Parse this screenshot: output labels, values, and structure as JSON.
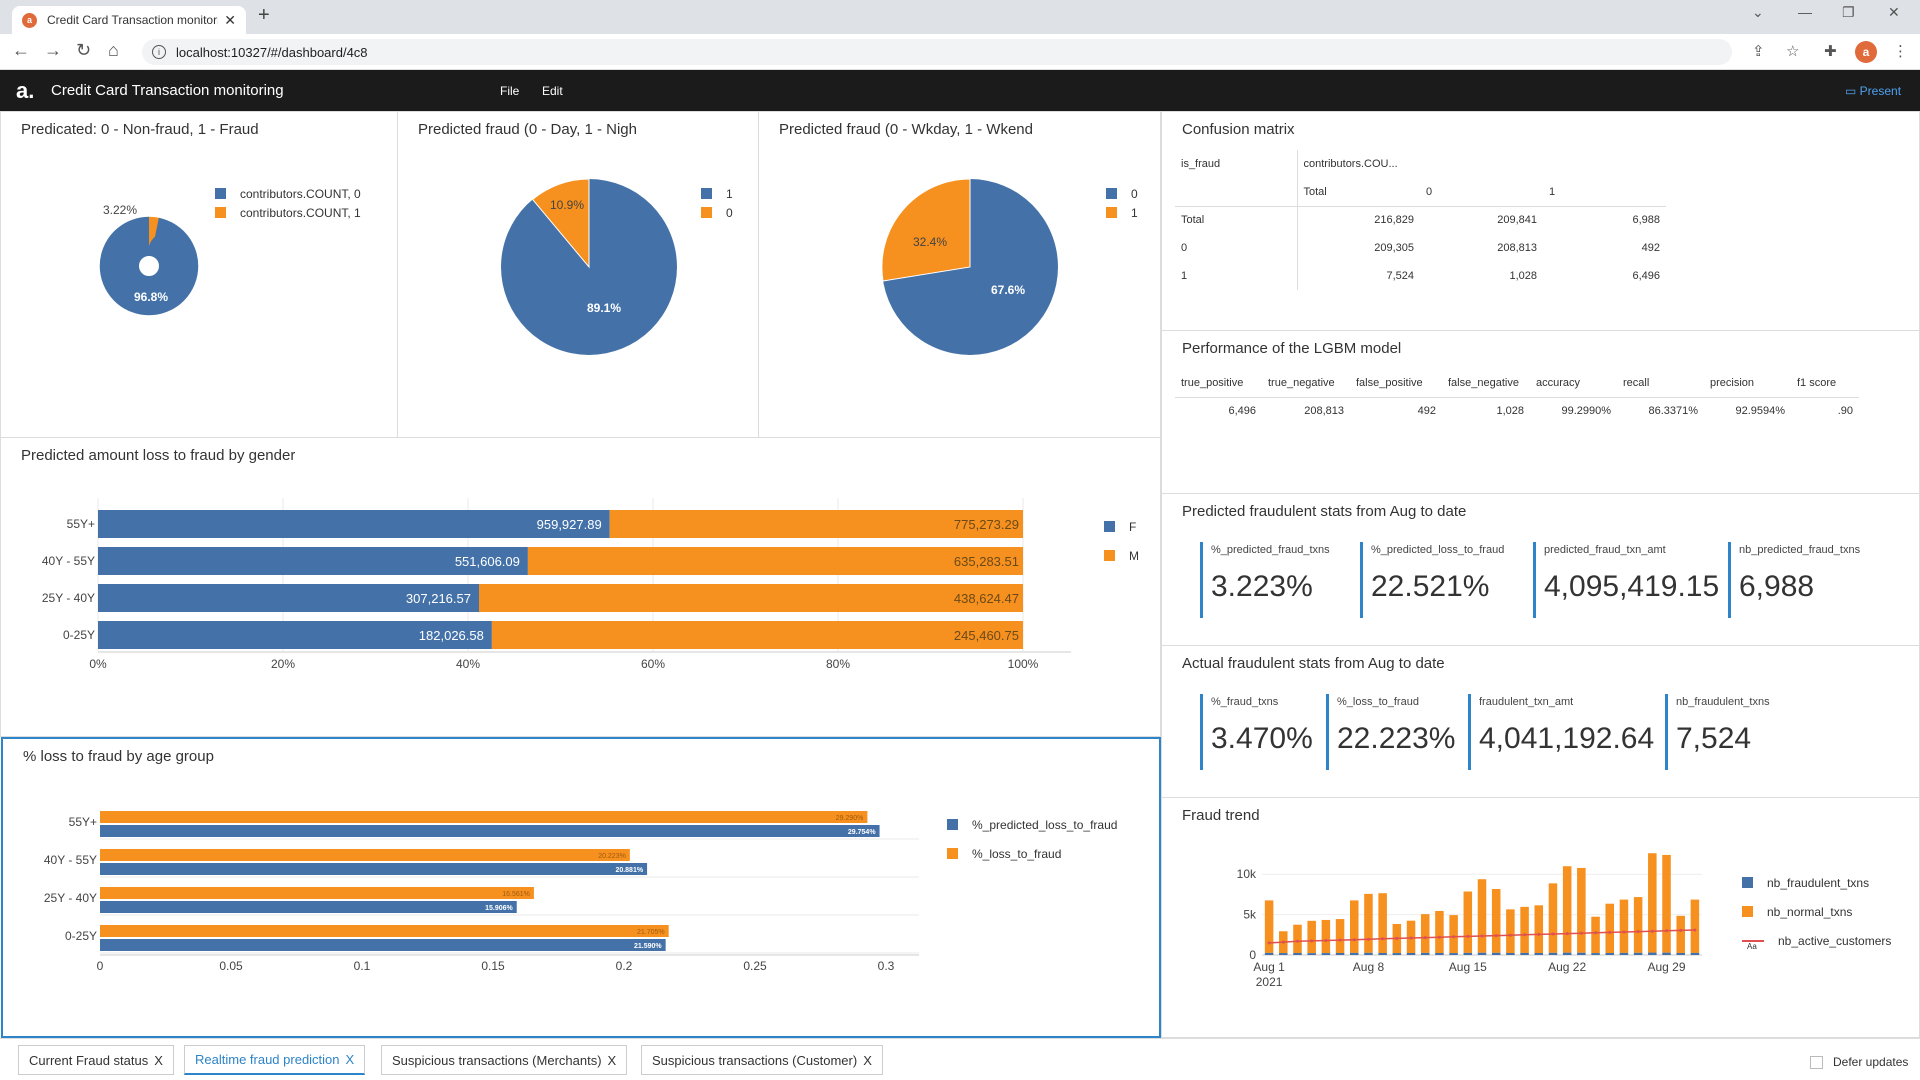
{
  "browser": {
    "tab_title": "Credit Card Transaction monitori",
    "url": "localhost:10327/#/dashboard/4c8"
  },
  "app": {
    "title": "Credit Card Transaction monitoring",
    "menu": [
      "File",
      "Edit"
    ],
    "present_label": "Present"
  },
  "panels": {
    "pie1": {
      "title": "Predicated: 0 - Non-fraud, 1 - Fraud",
      "legend": [
        "contributors.COUNT, 0",
        "contributors.COUNT, 1"
      ],
      "labels": [
        "96.8%",
        "3.22%"
      ]
    },
    "pie2": {
      "title": "Predicted fraud (0 - Day, 1 - Nigh",
      "legend": [
        "1",
        "0"
      ],
      "labels": [
        "89.1%",
        "10.9%"
      ]
    },
    "pie3": {
      "title": "Predicted fraud (0 - Wkday, 1 - Wkend",
      "legend": [
        "0",
        "1"
      ],
      "labels": [
        "67.6%",
        "32.4%"
      ]
    },
    "confusion": {
      "title": "Confusion matrix",
      "row_header": "is_fraud",
      "col_header": "contributors.COU...",
      "columns": [
        "Total",
        "0",
        "1"
      ],
      "rows": [
        {
          "label": "Total",
          "values": [
            "216,829",
            "209,841",
            "6,988"
          ]
        },
        {
          "label": "0",
          "values": [
            "209,305",
            "208,813",
            "492"
          ]
        },
        {
          "label": "1",
          "values": [
            "7,524",
            "1,028",
            "6,496"
          ]
        }
      ]
    },
    "performance": {
      "title": "Performance of the LGBM model",
      "headers": [
        "true_positive",
        "true_negative",
        "false_positive",
        "false_negative",
        "accuracy",
        "recall",
        "precision",
        "f1 score"
      ],
      "values": [
        "6,496",
        "208,813",
        "492",
        "1,028",
        "99.2990%",
        "86.3371%",
        "92.9594%",
        ".90"
      ]
    },
    "predicted_stats": {
      "title": "Predicted fraudulent stats from Aug to date",
      "kpis": [
        {
          "label": "%_predicted_fraud_txns",
          "value": "3.223%"
        },
        {
          "label": "%_predicted_loss_to_fraud",
          "value": "22.521%"
        },
        {
          "label": "predicted_fraud_txn_amt",
          "value": "4,095,419.15"
        },
        {
          "label": "nb_predicted_fraud_txns",
          "value": "6,988"
        }
      ]
    },
    "actual_stats": {
      "title": "Actual fraudulent stats from Aug to date",
      "kpis": [
        {
          "label": "%_fraud_txns",
          "value": "3.470%"
        },
        {
          "label": "%_loss_to_fraud",
          "value": "22.223%"
        },
        {
          "label": "fraudulent_txn_amt",
          "value": "4,041,192.64"
        },
        {
          "label": "nb_fraudulent_txns",
          "value": "7,524"
        }
      ]
    },
    "gender": {
      "title": "Predicted amount loss to fraud by gender",
      "legend": [
        "F",
        "M"
      ]
    },
    "age": {
      "title": "% loss to fraud by age group",
      "legend": [
        "%_predicted_loss_to_fraud",
        "%_loss_to_fraud"
      ]
    },
    "trend": {
      "title": "Fraud trend",
      "legend": [
        "nb_fraudulent_txns",
        "nb_normal_txns",
        "nb_active_customers"
      ],
      "legend_sub": "Aa"
    }
  },
  "bottom_tabs": [
    {
      "label": "Current Fraud status",
      "active": false
    },
    {
      "label": "Realtime fraud prediction",
      "active": true
    },
    {
      "label": "Suspicious transactions (Merchants)",
      "active": false
    },
    {
      "label": "Suspicious transactions (Customer)",
      "active": false
    }
  ],
  "defer_updates_label": "Defer updates",
  "colors": {
    "blue": "#4472a8",
    "orange": "#f6901e",
    "accent": "#2d84c8"
  },
  "chart_data": [
    {
      "type": "pie",
      "title": "Predicated: 0 - Non-fraud, 1 - Fraud",
      "categories": [
        "contributors.COUNT, 0",
        "contributors.COUNT, 1"
      ],
      "values": [
        96.8,
        3.22
      ],
      "donut": true
    },
    {
      "type": "pie",
      "title": "Predicted fraud (0 - Day, 1 - Nigh",
      "categories": [
        "1",
        "0"
      ],
      "values": [
        89.1,
        10.9
      ]
    },
    {
      "type": "pie",
      "title": "Predicted fraud (0 - Wkday, 1 - Wkend",
      "categories": [
        "0",
        "1"
      ],
      "values": [
        67.6,
        32.4
      ]
    },
    {
      "type": "bar",
      "title": "Predicted amount loss to fraud by gender",
      "stacked_percent": true,
      "orientation": "horizontal",
      "categories": [
        "55Y+",
        "40Y - 55Y",
        "25Y - 40Y",
        "0-25Y"
      ],
      "series": [
        {
          "name": "F",
          "values": [
            959927.89,
            551606.09,
            307216.57,
            182026.58
          ],
          "labels": [
            "959,927.89",
            "551,606.09",
            "307,216.57",
            "182,026.58"
          ]
        },
        {
          "name": "M",
          "values": [
            775273.29,
            635283.51,
            438624.47,
            245460.75
          ],
          "labels": [
            "775,273.29",
            "635,283.51",
            "438,624.47",
            "245,460.75"
          ]
        }
      ],
      "xticks": [
        "0%",
        "20%",
        "40%",
        "60%",
        "80%",
        "100%"
      ]
    },
    {
      "type": "bar",
      "title": "% loss to fraud by age group",
      "orientation": "horizontal",
      "categories": [
        "55Y+",
        "40Y - 55Y",
        "25Y - 40Y",
        "0-25Y"
      ],
      "series": [
        {
          "name": "%_loss_to_fraud",
          "values": [
            0.2929,
            0.20223,
            0.16561,
            0.21705
          ],
          "labels": [
            "29.290%",
            "20.223%",
            "16.561%",
            "21.705%"
          ]
        },
        {
          "name": "%_predicted_loss_to_fraud",
          "values": [
            0.29754,
            0.20881,
            0.15906,
            0.2159
          ],
          "labels": [
            "29.754%",
            "20.881%",
            "15.906%",
            "21.590%"
          ]
        }
      ],
      "xlim": [
        0,
        0.3
      ],
      "xticks": [
        "0",
        "0.05",
        "0.1",
        "0.15",
        "0.2",
        "0.25",
        "0.3"
      ]
    },
    {
      "type": "bar",
      "title": "Fraud trend",
      "x": [
        "Aug 1",
        "Aug 2",
        "Aug 3",
        "Aug 4",
        "Aug 5",
        "Aug 6",
        "Aug 7",
        "Aug 8",
        "Aug 9",
        "Aug 10",
        "Aug 11",
        "Aug 12",
        "Aug 13",
        "Aug 14",
        "Aug 15",
        "Aug 16",
        "Aug 17",
        "Aug 18",
        "Aug 19",
        "Aug 20",
        "Aug 21",
        "Aug 22",
        "Aug 23",
        "Aug 24",
        "Aug 25",
        "Aug 26",
        "Aug 27",
        "Aug 28",
        "Aug 29",
        "Aug 30",
        "Aug 31"
      ],
      "series": [
        {
          "name": "nb_normal_txns",
          "values": [
            6500,
            2700,
            3500,
            4000,
            4100,
            4200,
            6500,
            7300,
            7400,
            3600,
            4000,
            4800,
            5200,
            4700,
            7600,
            9100,
            7900,
            5400,
            5700,
            5900,
            8600,
            10700,
            10500,
            4500,
            6100,
            6600,
            6900,
            12300,
            12100,
            4600,
            6600
          ]
        },
        {
          "name": "nb_fraudulent_txns",
          "values": [
            260,
            240,
            250,
            230,
            240,
            250,
            260,
            270,
            250,
            240,
            250,
            260,
            250,
            240,
            260,
            280,
            270,
            250,
            260,
            250,
            270,
            290,
            280,
            240,
            250,
            260,
            270,
            300,
            290,
            250,
            260
          ]
        },
        {
          "name": "nb_active_customers",
          "values": [
            1500,
            1600,
            1700,
            1750,
            1800,
            1850,
            1900,
            1950,
            2000,
            2050,
            2100,
            2150,
            2200,
            2250,
            2300,
            2350,
            2400,
            2450,
            2500,
            2550,
            2600,
            2650,
            2700,
            2750,
            2800,
            2850,
            2900,
            2950,
            3000,
            3050,
            3100
          ]
        }
      ],
      "yticks": [
        "0",
        "5k",
        "10k"
      ],
      "xticks": [
        "Aug 1",
        "Aug 8",
        "Aug 15",
        "Aug 22",
        "Aug 29"
      ],
      "xsub": "2021"
    }
  ]
}
